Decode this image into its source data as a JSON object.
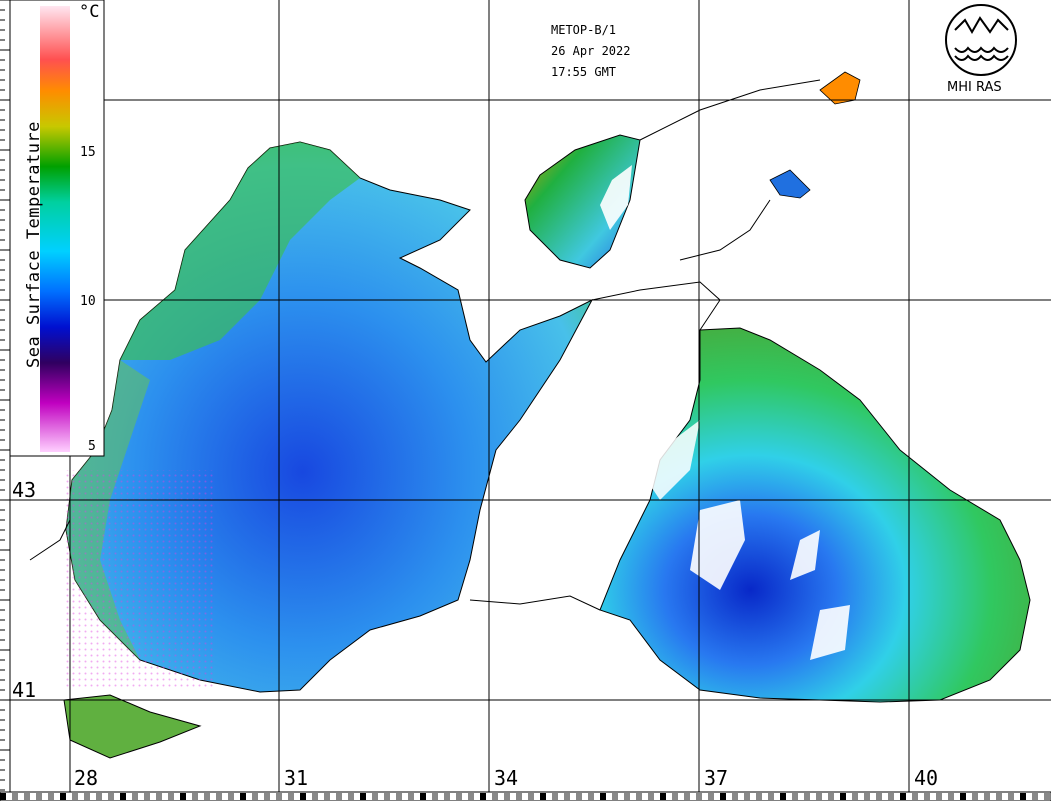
{
  "satellite": {
    "name": "METOP-B/1",
    "date": "26 Apr 2022",
    "time": "17:55 GMT"
  },
  "colorbar": {
    "title": "Sea Surface Temperature",
    "unit": "°C",
    "ticks": [
      "15",
      "10",
      "5"
    ],
    "colors": [
      "#ffe6f0",
      "#ff8080",
      "#ff6a00",
      "#d8c000",
      "#a0b000",
      "#00a000",
      "#00d000",
      "#00e8c0",
      "#00c8ff",
      "#0090ff",
      "#0020e0",
      "#000080",
      "#300060",
      "#a000a0",
      "#ff40ff",
      "#ffc8ff"
    ]
  },
  "axes": {
    "latitudes": [
      "43",
      "41"
    ],
    "longitudes": [
      "28",
      "31",
      "34",
      "37",
      "40"
    ]
  },
  "logo": {
    "text": "MHI RAS"
  },
  "colors": {
    "sea_warm": "#4fb0e8",
    "sea_cold": "#1040e0",
    "shelf_green": "#3cc04a",
    "land": "#ffffff",
    "grid": "#000000"
  }
}
